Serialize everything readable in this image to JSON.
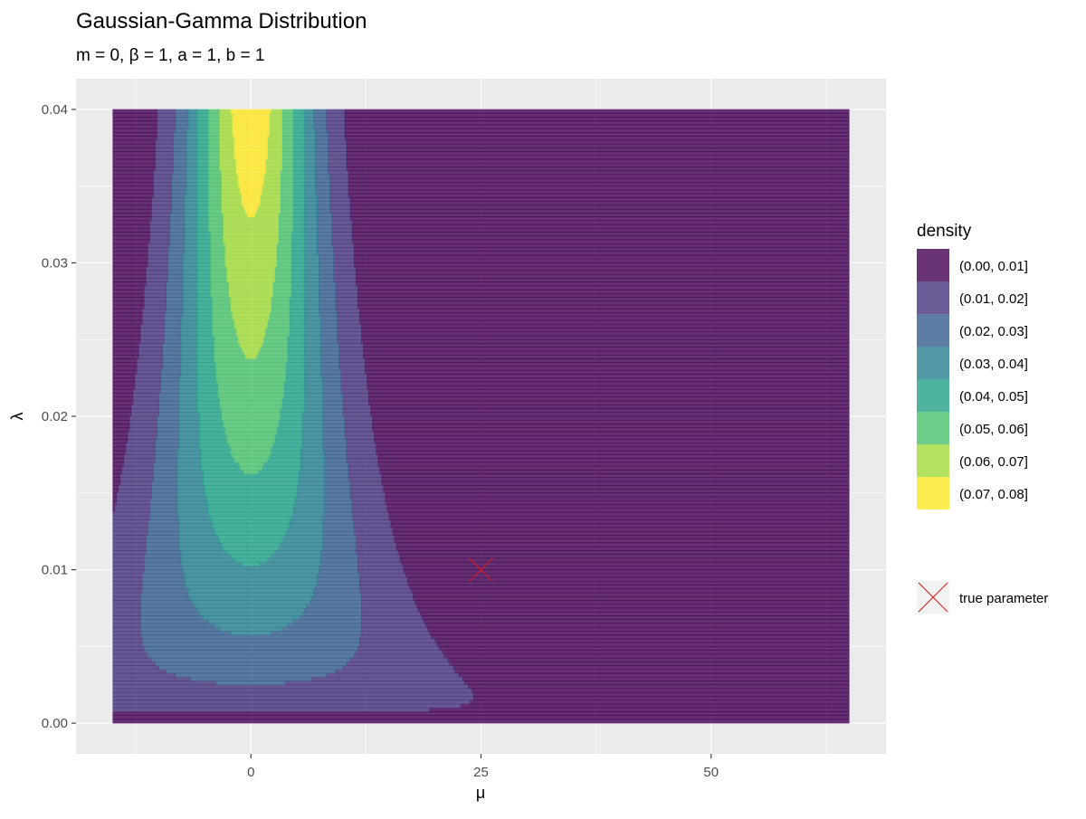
{
  "chart_data": {
    "type": "contour",
    "title": "Gaussian-Gamma Distribution",
    "subtitle": "m = 0, β = 1, a = 1, b = 1",
    "xlabel": "μ",
    "ylabel": "λ",
    "x_ticks": [
      0,
      25,
      50
    ],
    "y_ticks": [
      0.0,
      0.01,
      0.02,
      0.03,
      0.04
    ],
    "y_tick_labels": [
      "0.00",
      "0.01",
      "0.02",
      "0.03",
      "0.04"
    ],
    "xlim": [
      -19,
      69
    ],
    "ylim": [
      -0.002,
      0.042
    ],
    "data_extent": {
      "x": [
        -15,
        65
      ],
      "y": [
        0,
        0.04
      ]
    },
    "grid": true,
    "legend": {
      "title": "density",
      "placement": "right",
      "entries": [
        {
          "label": "(0.00, 0.01]",
          "color": "#440154"
        },
        {
          "label": "(0.01, 0.02]",
          "color": "#46337E"
        },
        {
          "label": "(0.02, 0.03]",
          "color": "#365C8D"
        },
        {
          "label": "(0.03, 0.04]",
          "color": "#277F8E"
        },
        {
          "label": "(0.04, 0.05]",
          "color": "#1FA187"
        },
        {
          "label": "(0.05, 0.06]",
          "color": "#4AC16D"
        },
        {
          "label": "(0.06, 0.07]",
          "color": "#A0DA39"
        },
        {
          "label": "(0.07, 0.08]",
          "color": "#FDE725"
        }
      ]
    },
    "fill_alpha": 0.8,
    "density_params": {
      "m": 0,
      "beta": 1,
      "a": 1,
      "b": 1
    },
    "contour_breaks": [
      0,
      0.01,
      0.02,
      0.03,
      0.04,
      0.05,
      0.06,
      0.07,
      0.08
    ],
    "points": [
      {
        "label": "true parameter",
        "mu": 25,
        "lambda": 0.01,
        "shape": "x",
        "color": "#E41A1C"
      }
    ]
  }
}
